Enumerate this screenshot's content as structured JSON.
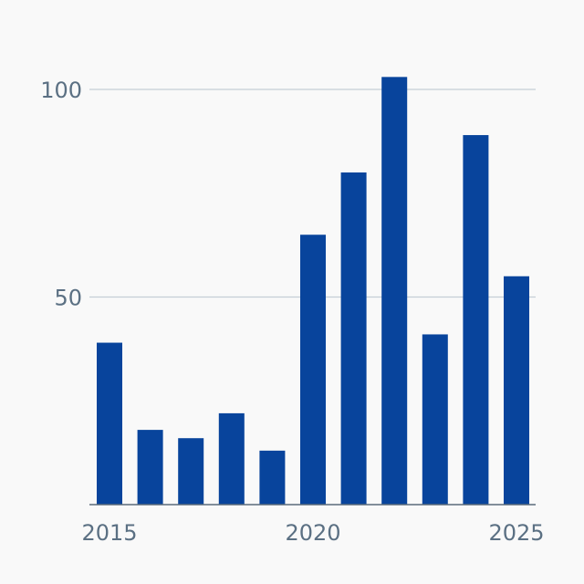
{
  "chart_data": {
    "type": "bar",
    "title": "",
    "xlabel": "",
    "ylabel": "",
    "categories": [
      "2015",
      "2016",
      "2017",
      "2018",
      "2019",
      "2020",
      "2021",
      "2022",
      "2023",
      "2024",
      "2025"
    ],
    "values": [
      39,
      18,
      16,
      22,
      13,
      65,
      80,
      103,
      41,
      89,
      55
    ],
    "ylim": [
      0,
      110
    ],
    "y_ticks": [
      "50",
      "100"
    ],
    "x_tick_labels": [
      "2015",
      "2020",
      "2025"
    ],
    "grid": true,
    "bar_color": "#08449c",
    "background_color": "#f9f9f9",
    "grid_color": "#c5cdd6",
    "text_color": "#5b7083",
    "axis_color": "#5b6b7b"
  }
}
